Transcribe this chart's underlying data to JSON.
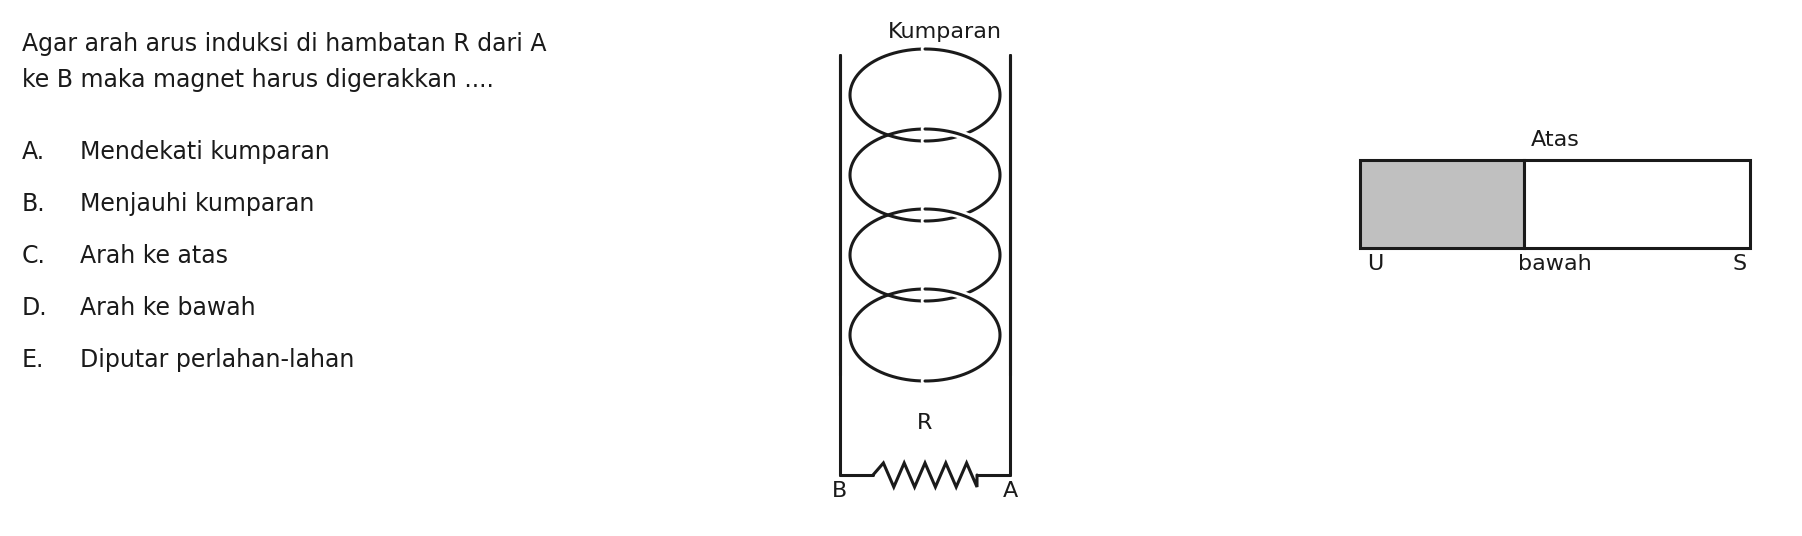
{
  "title_line1": "Agar arah arus induksi di hambatan R dari A",
  "title_line2": "ke B maka magnet harus digerakkan ....",
  "options": [
    [
      "A.",
      "Mendekati kumparan"
    ],
    [
      "B.",
      "Menjauhi kumparan"
    ],
    [
      "C.",
      "Arah ke atas"
    ],
    [
      "D.",
      "Arah ke bawah"
    ],
    [
      "E.",
      "Diputar perlahan-lahan"
    ]
  ],
  "kumparan_label": "Kumparan",
  "atas_label": "Atas",
  "U_label": "U",
  "bawah_label": "bawah",
  "S_label": "S",
  "R_label": "R",
  "B_label": "B",
  "A_label": "A",
  "text_color": "#1a1a1a",
  "line_color": "#1a1a1a",
  "gray_color": "#c0c0c0",
  "bg_color": "#ffffff",
  "font_size_main": 17,
  "font_size_labels": 16
}
